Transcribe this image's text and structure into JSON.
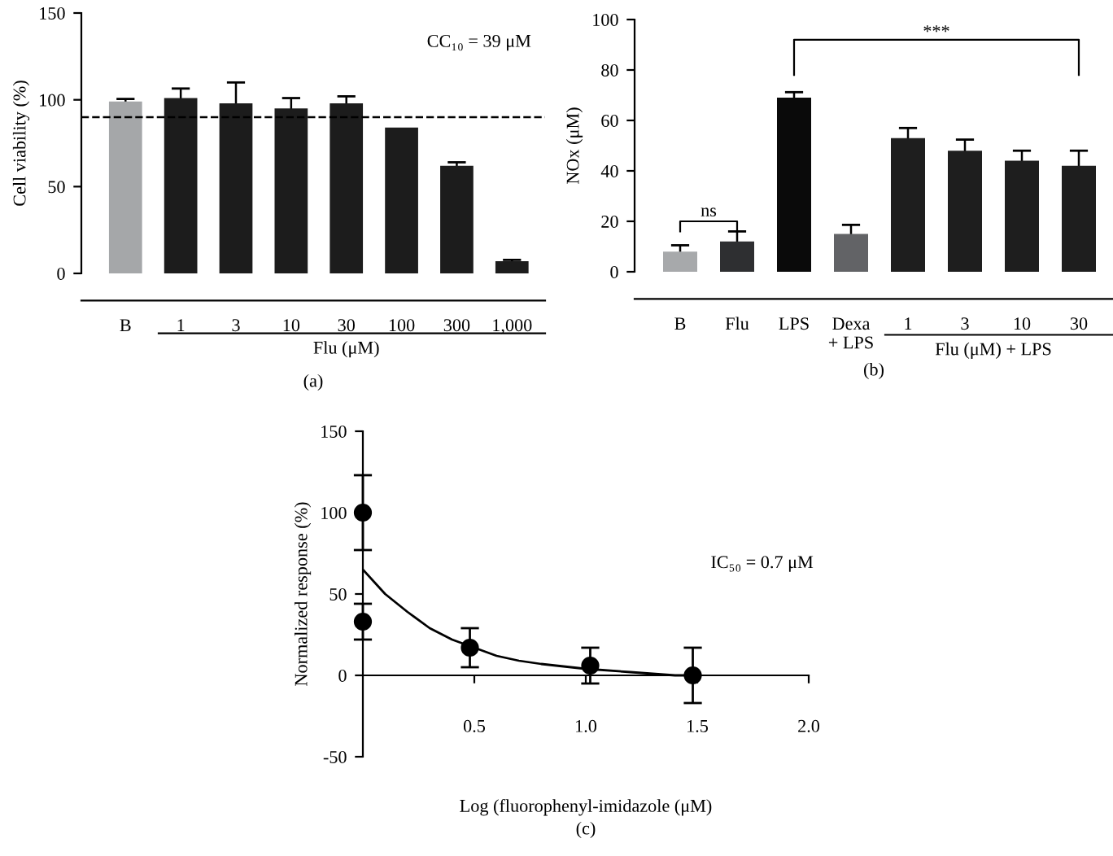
{
  "chart_data": [
    {
      "type": "bar",
      "categories": [
        "B",
        "1",
        "3",
        "10",
        "30",
        "100",
        "300",
        "1,000"
      ],
      "values": [
        99,
        101,
        98,
        95,
        98,
        84,
        62,
        7
      ],
      "errors": [
        1.5,
        5.5,
        12,
        6,
        4,
        null,
        2,
        0.8
      ],
      "colors": [
        "#a5a7a9",
        "#1c1c1c",
        "#1c1c1c",
        "#1c1c1c",
        "#1c1c1c",
        "#1c1c1c",
        "#1c1c1c",
        "#1c1c1c"
      ],
      "ylim": [
        0,
        150
      ],
      "yticks": [
        0,
        50,
        100,
        150
      ],
      "ylabel": "Cell viability (%)",
      "xlabel": "Flu (μM)",
      "ref_lines": [
        {
          "axis": "y",
          "value": 90,
          "line_style": "dashed",
          "color": "#000000"
        }
      ],
      "annotations": [
        "CC₁₀ = 39 μM",
        "(a)"
      ]
    },
    {
      "type": "bar",
      "categories": [
        "B",
        "Flu",
        "LPS",
        "Dexa\n+ LPS",
        "1",
        "3",
        "10",
        "30"
      ],
      "values": [
        8,
        12,
        69,
        15,
        53,
        48,
        44,
        42
      ],
      "errors": [
        2.5,
        4,
        2.2,
        3.6,
        4,
        4.4,
        4,
        6
      ],
      "colors": [
        "#a7a9ab",
        "#2e2f31",
        "#0a0a0a",
        "#626366",
        "#1e1e1e",
        "#1e1e1e",
        "#1e1e1e",
        "#1e1e1e"
      ],
      "ylim": [
        0,
        100
      ],
      "yticks": [
        0,
        20,
        40,
        60,
        80,
        100
      ],
      "ylabel": "NOx (μM)",
      "xlabel": "Flu (μM) + LPS",
      "annotations": [
        "ns",
        "***",
        "(b)"
      ]
    },
    {
      "type": "scatter",
      "xlim": [
        0,
        2
      ],
      "ylim": [
        -50,
        150
      ],
      "xticks": [
        {
          "value": 0.5,
          "label": "0.5"
        },
        {
          "value": 1.0,
          "label": "1.0"
        },
        {
          "value": 1.5,
          "label": "1.5"
        },
        {
          "value": 2.0,
          "label": "2.0"
        }
      ],
      "yticks": [
        -50,
        0,
        50,
        100,
        150
      ],
      "xlabel": "Log (fluorophenyl-imidazole (μM)",
      "ylabel": "Normalized response (%)",
      "series": [
        {
          "type": "scatter",
          "color": "#000000",
          "marker": "circle",
          "x": [
            0,
            0,
            0.48,
            1.02,
            1.48
          ],
          "values": [
            100,
            33,
            17,
            6,
            0
          ],
          "errors": [
            23,
            11,
            12,
            11,
            17
          ]
        },
        {
          "type": "line",
          "color": "#000000",
          "marker": "none",
          "x": [
            0,
            0.1,
            0.2,
            0.3,
            0.4,
            0.5,
            0.6,
            0.7,
            0.8,
            1.0,
            1.2,
            1.4,
            1.5
          ],
          "values": [
            65,
            50,
            39,
            29,
            22,
            17,
            12,
            9,
            7,
            4,
            2,
            0,
            0
          ]
        }
      ],
      "annotations": [
        "IC₅₀ = 0.7 μM",
        "(c)"
      ]
    }
  ]
}
